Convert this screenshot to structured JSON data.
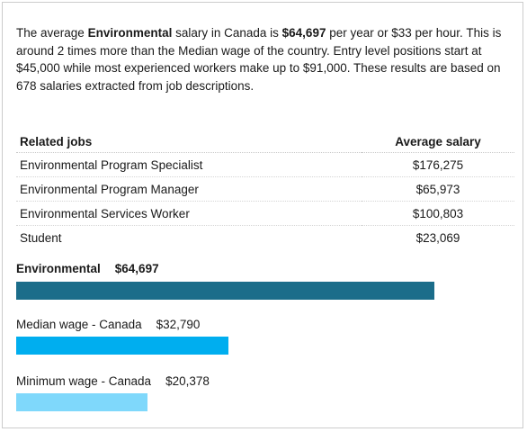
{
  "intro": {
    "p1": "The average ",
    "job": "Environmental",
    "p2": " salary in Canada is ",
    "salary": "$64,697",
    "p3": " per year or $33 per hour. This is around 2 times more than the Median wage of the country. Entry level positions start at $45,000 while most experienced workers make up to $91,000. These results are based on 678 salaries extracted from job descriptions."
  },
  "related": {
    "header_job": "Related jobs",
    "header_salary": "Average salary",
    "rows": [
      {
        "job": "Environmental Program Specialist",
        "salary": "$176,275"
      },
      {
        "job": "Environmental Program Manager",
        "salary": "$65,973"
      },
      {
        "job": "Environmental Services Worker",
        "salary": "$100,803"
      },
      {
        "job": "Student",
        "salary": "$23,069"
      }
    ]
  },
  "comparison": {
    "bars": [
      {
        "label": "Environmental",
        "amount": "$64,697",
        "value": 64697,
        "color": "#1b6d8a"
      },
      {
        "label": "Median wage - Canada",
        "amount": "$32,790",
        "value": 32790,
        "color": "#00aeef"
      },
      {
        "label": "Minimum wage - Canada",
        "amount": "$20,378",
        "value": 20378,
        "color": "#7fd8fb"
      }
    ]
  }
}
